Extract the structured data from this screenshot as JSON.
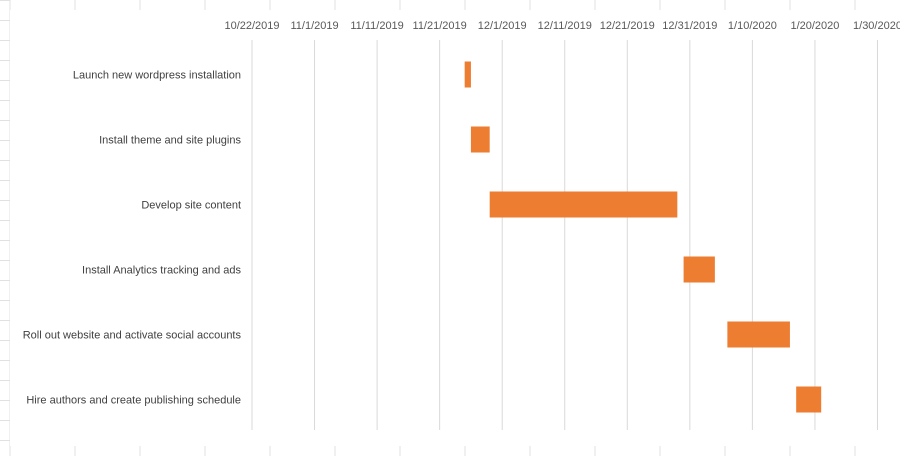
{
  "chart_data": {
    "type": "bar",
    "orientation": "horizontal",
    "style": "gantt",
    "title": "",
    "xlabel": "",
    "ylabel": "",
    "x_axis_position": "top",
    "grid": true,
    "legend": "none",
    "bar_color": "#ED7D31",
    "x_ticks": [
      "10/22/2019",
      "11/1/2019",
      "11/11/2019",
      "11/21/2019",
      "12/1/2019",
      "12/11/2019",
      "12/21/2019",
      "12/31/2019",
      "1/10/2020",
      "1/20/2020",
      "1/30/2020"
    ],
    "xlim": [
      "2019-10-22",
      "2020-02-01"
    ],
    "tasks": [
      {
        "name": "Launch new wordpress installation",
        "start": "2019-11-25",
        "end": "2019-11-26"
      },
      {
        "name": "Install theme and site plugins",
        "start": "2019-11-26",
        "end": "2019-11-29"
      },
      {
        "name": "Develop site content",
        "start": "2019-11-29",
        "end": "2019-12-29"
      },
      {
        "name": "Install Analytics tracking and ads",
        "start": "2019-12-30",
        "end": "2020-01-04"
      },
      {
        "name": "Roll out website and activate social accounts",
        "start": "2020-01-06",
        "end": "2020-01-16"
      },
      {
        "name": "Hire authors and create publishing schedule",
        "start": "2020-01-17",
        "end": "2020-01-21"
      }
    ]
  }
}
